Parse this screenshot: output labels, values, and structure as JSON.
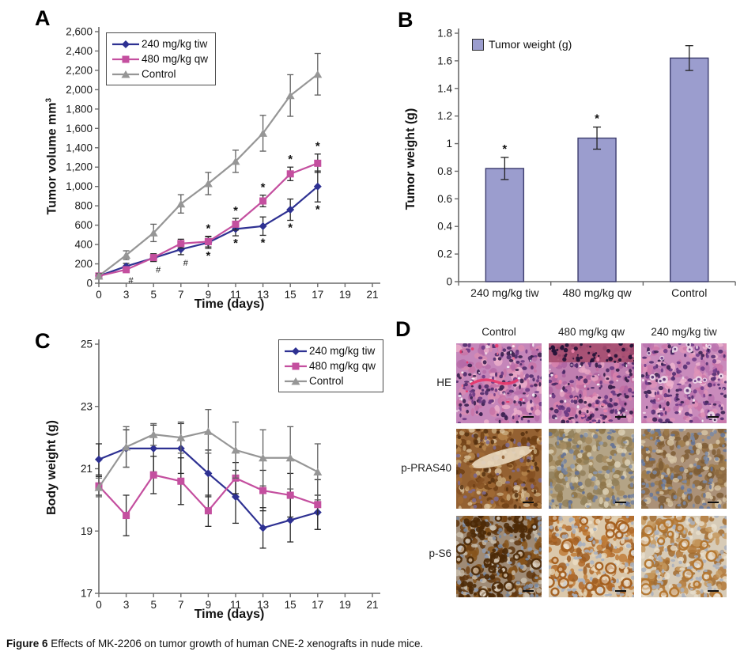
{
  "panels": {
    "a": "A",
    "b": "B",
    "c": "C",
    "d": "D"
  },
  "caption": {
    "label": "Figure 6",
    "text": "Effects of MK-2206 on tumor growth of human CNE-2 xenografts in nude mice."
  },
  "chart_data": [
    {
      "id": "A",
      "type": "line",
      "xlabel": "Time (days)",
      "ylabel": "Tumor volume mm",
      "ylabel_sup": "3",
      "x_categories": [
        0,
        3,
        5,
        7,
        9,
        11,
        13,
        15,
        17,
        19,
        21
      ],
      "ylim": [
        0,
        2600
      ],
      "yticks": [
        "0",
        "200",
        "400",
        "600",
        "800",
        "1,000",
        "1,200",
        "1,400",
        "1,600",
        "1,800",
        "2,000",
        "2,200",
        "2,400",
        "2,600"
      ],
      "legend_position": "top-left",
      "series": [
        {
          "name": "240 mg/kg tiw",
          "marker": "diamond",
          "color": "#2e3192",
          "error_color": "#2a2a2a",
          "values": [
            75,
            175,
            260,
            350,
            420,
            560,
            590,
            760,
            1000
          ],
          "errors": [
            20,
            30,
            35,
            55,
            60,
            70,
            95,
            110,
            160
          ]
        },
        {
          "name": "480 mg/kg qw",
          "marker": "square",
          "color": "#c44f9f",
          "error_color": "#2a2a2a",
          "values": [
            75,
            140,
            265,
            410,
            430,
            610,
            850,
            1130,
            1240
          ],
          "errors": [
            20,
            25,
            40,
            45,
            55,
            60,
            60,
            70,
            95
          ]
        },
        {
          "name": "Control",
          "marker": "triangle",
          "color": "#969696",
          "error_color": "#5f5f5f",
          "values": [
            75,
            290,
            520,
            820,
            1030,
            1260,
            1550,
            1940,
            2160
          ],
          "errors": [
            25,
            45,
            90,
            95,
            115,
            115,
            185,
            215,
            215
          ]
        }
      ],
      "annotations": [
        {
          "x": 3,
          "symbol": "#",
          "series": "480 mg/kg qw",
          "placement": "below"
        },
        {
          "x": 5,
          "symbol": "#",
          "series": "480 mg/kg qw",
          "placement": "below"
        },
        {
          "x": 7,
          "symbol": "#",
          "series": "240 mg/kg tiw",
          "placement": "below"
        },
        {
          "x": 9,
          "symbol": "*",
          "series": "480 mg/kg qw",
          "placement": "above"
        },
        {
          "x": 9,
          "symbol": "*",
          "series": "240 mg/kg tiw",
          "placement": "below"
        },
        {
          "x": 11,
          "symbol": "*",
          "series": "480 mg/kg qw",
          "placement": "above"
        },
        {
          "x": 11,
          "symbol": "*",
          "series": "240 mg/kg tiw",
          "placement": "below"
        },
        {
          "x": 13,
          "symbol": "*",
          "series": "480 mg/kg qw",
          "placement": "above"
        },
        {
          "x": 13,
          "symbol": "*",
          "series": "240 mg/kg tiw",
          "placement": "below"
        },
        {
          "x": 15,
          "symbol": "*",
          "series": "480 mg/kg qw",
          "placement": "above"
        },
        {
          "x": 15,
          "symbol": "*",
          "series": "240 mg/kg tiw",
          "placement": "below"
        },
        {
          "x": 17,
          "symbol": "*",
          "series": "480 mg/kg qw",
          "placement": "above"
        },
        {
          "x": 17,
          "symbol": "*",
          "series": "240 mg/kg tiw",
          "placement": "below"
        }
      ]
    },
    {
      "id": "B",
      "type": "bar",
      "legend": "Tumor weight (g)",
      "ylabel": "Tumor weight (g)",
      "categories": [
        "240 mg/kg tiw",
        "480 mg/kg qw",
        "Control"
      ],
      "values": [
        0.82,
        1.04,
        1.62
      ],
      "errors": [
        0.08,
        0.08,
        0.09
      ],
      "significance": [
        "*",
        "*",
        ""
      ],
      "ylim": [
        0,
        1.8
      ],
      "yticks": [
        "0",
        "0.2",
        "0.4",
        "0.6",
        "0.8",
        "1",
        "1.2",
        "1.4",
        "1.6",
        "1.8"
      ],
      "bar_fill": "#9b9dce",
      "bar_border": "#3c3c6e"
    },
    {
      "id": "C",
      "type": "line",
      "xlabel": "Time (days)",
      "ylabel": "Body weight (g)",
      "x_categories": [
        0,
        3,
        5,
        7,
        9,
        11,
        13,
        15,
        17,
        19,
        21
      ],
      "ylim": [
        17,
        25
      ],
      "yticks": [
        "17",
        "19",
        "21",
        "23",
        "25"
      ],
      "legend_position": "top-right",
      "series": [
        {
          "name": "240 mg/kg tiw",
          "marker": "diamond",
          "color": "#2e3192",
          "error_color": "#2a2a2a",
          "values": [
            21.3,
            21.65,
            21.65,
            21.65,
            20.85,
            20.1,
            19.1,
            19.35,
            19.6
          ],
          "errors": [
            0.5,
            0.6,
            0.75,
            0.8,
            0.75,
            0.85,
            0.65,
            0.7,
            0.55
          ]
        },
        {
          "name": "480 mg/kg qw",
          "marker": "square",
          "color": "#c44f9f",
          "error_color": "#2a2a2a",
          "values": [
            20.45,
            19.5,
            20.8,
            20.6,
            19.65,
            20.7,
            20.3,
            20.15,
            19.85
          ],
          "errors": [
            0.3,
            0.65,
            0.6,
            0.75,
            0.5,
            0.5,
            0.65,
            0.7,
            0.8
          ]
        },
        {
          "name": "Control",
          "marker": "triangle",
          "color": "#969696",
          "error_color": "#5f5f5f",
          "values": [
            20.4,
            21.7,
            22.1,
            22.0,
            22.2,
            21.6,
            21.35,
            21.35,
            20.9
          ],
          "errors": [
            0.3,
            0.65,
            0.35,
            0.5,
            0.7,
            0.9,
            0.9,
            1.0,
            0.9
          ]
        }
      ],
      "annotations": []
    }
  ],
  "panelD": {
    "col_headers": [
      "Control",
      "480 mg/kg qw",
      "240 mg/kg tiw"
    ],
    "row_labels": [
      "HE",
      "p-PRAS40",
      "p-S6"
    ],
    "cells": [
      {
        "row": "HE",
        "col": "Control",
        "style": "he",
        "bg": "#c586ba",
        "cyto": [
          "#db8cb2",
          "#c873a6",
          "#eeb2cc",
          "#b56aa8"
        ],
        "nuclei": [
          "#4f2c6b",
          "#6d3a84",
          "#38204f"
        ],
        "feature": "streak"
      },
      {
        "row": "HE",
        "col": "480 mg/kg qw",
        "style": "he",
        "bg": "#c07eb0",
        "cyto": [
          "#d983ac",
          "#c36ba0",
          "#e9a8c4",
          "#ad62a0"
        ],
        "nuclei": [
          "#4a2965",
          "#673781",
          "#311c46"
        ],
        "feature": "topband"
      },
      {
        "row": "HE",
        "col": "240 mg/kg tiw",
        "style": "he",
        "bg": "#c98bbc",
        "cyto": [
          "#e094b8",
          "#cb76a9",
          "#f0b7d0",
          "#b971ac"
        ],
        "nuclei": [
          "#532e70",
          "#703c88",
          "#3b2253"
        ],
        "feature": "halos"
      },
      {
        "row": "p-PRAS40",
        "col": "Control",
        "style": "ihc",
        "bg": "#946132",
        "mid": [
          "#6e3f15",
          "#855022",
          "#a06a35",
          "#b5854c"
        ],
        "nuc": [
          "#55300f",
          "#7b6a93"
        ],
        "light": [
          "#d9c29e",
          "#c8ab7e"
        ],
        "rings": "",
        "feature": "lightstreak"
      },
      {
        "row": "p-PRAS40",
        "col": "480 mg/kg qw",
        "style": "ihc",
        "bg": "#b4a486",
        "mid": [
          "#92805a",
          "#a68c60",
          "#8d7448"
        ],
        "nuc": [
          "#74839f",
          "#5f7096",
          "#8a96ad"
        ],
        "light": [
          "#ded3b9",
          "#cfc2a2"
        ],
        "rings": "",
        "feature": ""
      },
      {
        "row": "p-PRAS40",
        "col": "240 mg/kg tiw",
        "style": "ihc",
        "bg": "#ab9178",
        "mid": [
          "#8b673e",
          "#9e7a4a",
          "#7d5c35"
        ],
        "nuc": [
          "#7988a6",
          "#64759b"
        ],
        "light": [
          "#d8c7a8"
        ],
        "rings": "",
        "feature": ""
      },
      {
        "row": "p-S6",
        "col": "Control",
        "style": "ihc",
        "bg": "#9f8b76",
        "mid": [
          "#714214",
          "#86531b",
          "#5e350e"
        ],
        "nuc": [
          "#8d9ab0",
          "#75869f"
        ],
        "light": [
          "#cbc1b0"
        ],
        "rings": "#4f2d0a",
        "feature": "darkclusters"
      },
      {
        "row": "p-S6",
        "col": "480 mg/kg qw",
        "style": "ihc",
        "bg": "#dbc8ab",
        "mid": [
          "#b06a2a",
          "#c07d38",
          "#9d5c20"
        ],
        "nuc": [
          "#a7b0c0"
        ],
        "light": [
          "#ecdfc6",
          "#e2d2b4"
        ],
        "rings": "#a55f1e",
        "feature": ""
      },
      {
        "row": "p-S6",
        "col": "240 mg/kg tiw",
        "style": "ihc",
        "bg": "#d7cbb7",
        "mid": [
          "#b3793a",
          "#c6995f",
          "#a26c30"
        ],
        "nuc": [
          "#a9b0bd"
        ],
        "light": [
          "#e8dfcc"
        ],
        "rings": "#b4762f",
        "feature": ""
      }
    ]
  }
}
